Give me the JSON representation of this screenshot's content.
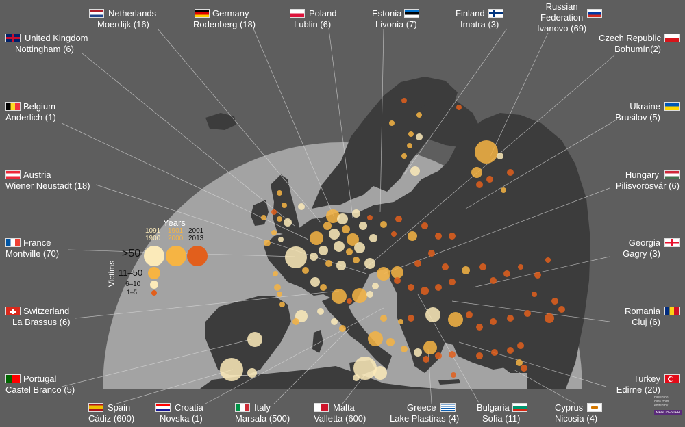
{
  "legend": {
    "title": "Years",
    "victims_label": "Victims",
    "periods": [
      {
        "from": "1091",
        "to": "1900",
        "color": "#fbeab9"
      },
      {
        "from": "1901",
        "to": "2000",
        "color": "#f6b443"
      },
      {
        "from": "2001",
        "to": "2013",
        "color": "#e25f1c"
      }
    ],
    "sizes": [
      ">50",
      "11–50",
      "6–10",
      "1–5"
    ]
  },
  "labels": [
    {
      "id": "netherlands",
      "country": "Netherlands",
      "place": "Moerdijk (16)",
      "flag": "netherlands"
    },
    {
      "id": "germany",
      "country": "Germany",
      "place": "Rodenberg (18)",
      "flag": "germany"
    },
    {
      "id": "poland",
      "country": "Poland",
      "place": "Lublin (6)",
      "flag": "poland"
    },
    {
      "id": "estonia",
      "country": "Estonia",
      "place": "Livonia (7)",
      "flag": "estonia"
    },
    {
      "id": "finland",
      "country": "Finland",
      "place": "Imatra (3)",
      "flag": "finland"
    },
    {
      "id": "russia",
      "country": "Russian Federation",
      "country_l1": "Russian",
      "country_l2": "Federation",
      "place": "Ivanovo (69)",
      "flag": "russia"
    },
    {
      "id": "uk",
      "country": "United Kingdom",
      "place": "Nottingham (6)",
      "flag": "uk"
    },
    {
      "id": "czech",
      "country": "Czech Republic",
      "place": "Bohumín(2)",
      "flag": "czech"
    },
    {
      "id": "belgium",
      "country": "Belgium",
      "place": "Anderlich (1)",
      "flag": "belgium"
    },
    {
      "id": "ukraine",
      "country": "Ukraine",
      "place": "Brusilov (5)",
      "flag": "ukraine"
    },
    {
      "id": "austria",
      "country": "Austria",
      "place": "Wiener Neustadt (18)",
      "flag": "austria"
    },
    {
      "id": "hungary",
      "country": "Hungary",
      "place": "Pilisvörösvár (6)",
      "flag": "hungary"
    },
    {
      "id": "france",
      "country": "France",
      "place": "Montville (70)",
      "flag": "france"
    },
    {
      "id": "georgia",
      "country": "Georgia",
      "place": "Gagry (3)",
      "flag": "georgia"
    },
    {
      "id": "switzerland",
      "country": "Switzerland",
      "place": "La Brassus (6)",
      "flag": "switzerland"
    },
    {
      "id": "romania",
      "country": "Romania",
      "place": "Cluj (6)",
      "flag": "romania"
    },
    {
      "id": "portugal",
      "country": "Portugal",
      "place": "Castel Branco (5)",
      "flag": "portugal"
    },
    {
      "id": "turkey",
      "country": "Turkey",
      "place": "Edirne (20)",
      "flag": "turkey"
    },
    {
      "id": "spain",
      "country": "Spain",
      "place": "Cádiz (600)",
      "flag": "spain"
    },
    {
      "id": "croatia",
      "country": "Croatia",
      "place": "Novska (1)",
      "flag": "croatia"
    },
    {
      "id": "italy",
      "country": "Italy",
      "place": "Marsala (500)",
      "flag": "italy"
    },
    {
      "id": "malta",
      "country": "Malta",
      "place": "Valletta (600)",
      "flag": "malta"
    },
    {
      "id": "greece",
      "country": "Greece",
      "place": "Lake Plastiras (4)",
      "flag": "greece"
    },
    {
      "id": "bulgaria",
      "country": "Bulgaria",
      "place": "Sofia (11)",
      "flag": "bulgaria"
    },
    {
      "id": "cyprus",
      "country": "Cyprus",
      "place": "Nicosia (4)",
      "flag": "cyprus"
    }
  ],
  "credit": {
    "line1": "based on",
    "line2": "data from",
    "line3": "edited by",
    "badge": "MANCHESTER"
  },
  "colors": {
    "background": "#5e5e5e",
    "sea": "#a3a3a3",
    "land": "#3c3c3c",
    "old": "#fbeab9",
    "mid": "#f6b443",
    "recent": "#e25f1c"
  }
}
